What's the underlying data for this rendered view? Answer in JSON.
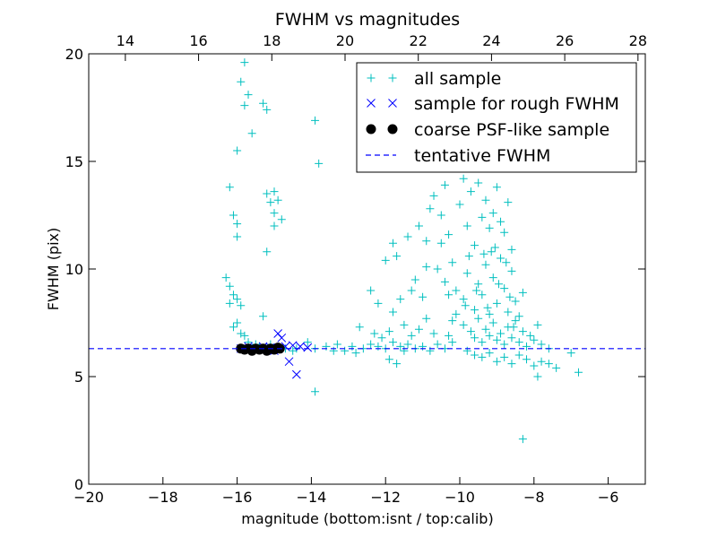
{
  "chart_data": {
    "type": "scatter",
    "title": "FWHM vs magnitudes",
    "xlabel": "magnitude (bottom:isnt / top:calib)",
    "ylabel": "FWHM (pix)",
    "xlim": [
      -20,
      -5
    ],
    "ylim": [
      0,
      20
    ],
    "xticks": [
      -20,
      -18,
      -16,
      -14,
      -12,
      -10,
      -8,
      -6
    ],
    "yticks": [
      0,
      5,
      10,
      15,
      20
    ],
    "top_axis": {
      "xlim": [
        13.0,
        28.2
      ],
      "ticks": [
        14,
        16,
        18,
        20,
        22,
        24,
        26,
        28
      ]
    },
    "legend_position": "top-right",
    "series": [
      {
        "name": "all sample",
        "marker": "plus",
        "color": "#00bfbf",
        "points": [
          [
            -15.8,
            19.6
          ],
          [
            -15.9,
            18.7
          ],
          [
            -15.7,
            18.1
          ],
          [
            -15.8,
            17.6
          ],
          [
            -15.3,
            17.7
          ],
          [
            -15.2,
            17.4
          ],
          [
            -13.9,
            16.9
          ],
          [
            -15.6,
            16.3
          ],
          [
            -16.0,
            15.5
          ],
          [
            -13.8,
            14.9
          ],
          [
            -16.2,
            13.8
          ],
          [
            -15.0,
            13.6
          ],
          [
            -15.2,
            13.5
          ],
          [
            -15.1,
            13.1
          ],
          [
            -14.9,
            13.2
          ],
          [
            -15.0,
            12.6
          ],
          [
            -16.1,
            12.5
          ],
          [
            -16.0,
            12.1
          ],
          [
            -14.8,
            12.3
          ],
          [
            -15.0,
            12.0
          ],
          [
            -16.0,
            11.5
          ],
          [
            -15.2,
            10.8
          ],
          [
            -16.3,
            9.6
          ],
          [
            -16.2,
            9.2
          ],
          [
            -16.1,
            8.8
          ],
          [
            -16.2,
            8.4
          ],
          [
            -16.0,
            8.6
          ],
          [
            -15.9,
            8.3
          ],
          [
            -16.0,
            7.5
          ],
          [
            -16.1,
            7.3
          ],
          [
            -15.9,
            7.0
          ],
          [
            -15.3,
            7.8
          ],
          [
            -15.8,
            6.9
          ],
          [
            -15.7,
            6.6
          ],
          [
            -15.5,
            6.5
          ],
          [
            -15.4,
            6.4
          ],
          [
            -15.1,
            6.5
          ],
          [
            -14.7,
            6.3
          ],
          [
            -14.4,
            6.3
          ],
          [
            -14.1,
            6.6
          ],
          [
            -13.9,
            6.3
          ],
          [
            -13.6,
            6.4
          ],
          [
            -13.3,
            6.5
          ],
          [
            -13.1,
            6.2
          ],
          [
            -12.9,
            6.4
          ],
          [
            -12.6,
            6.3
          ],
          [
            -12.4,
            6.5
          ],
          [
            -12.2,
            6.4
          ],
          [
            -12.0,
            6.3
          ],
          [
            -11.8,
            6.6
          ],
          [
            -11.6,
            6.4
          ],
          [
            -11.4,
            6.5
          ],
          [
            -11.2,
            6.3
          ],
          [
            -11.0,
            6.4
          ],
          [
            -10.8,
            6.2
          ],
          [
            -10.6,
            6.5
          ],
          [
            -10.4,
            6.3
          ],
          [
            -10.2,
            6.6
          ],
          [
            -14.5,
            6.2
          ],
          [
            -13.4,
            6.2
          ],
          [
            -12.8,
            6.1
          ],
          [
            -11.5,
            6.2
          ],
          [
            -11.9,
            5.8
          ],
          [
            -11.7,
            5.6
          ],
          [
            -13.9,
            4.3
          ],
          [
            -12.7,
            7.3
          ],
          [
            -12.3,
            7.0
          ],
          [
            -12.1,
            6.8
          ],
          [
            -11.9,
            7.1
          ],
          [
            -11.5,
            7.4
          ],
          [
            -11.3,
            6.9
          ],
          [
            -11.1,
            7.2
          ],
          [
            -10.9,
            7.7
          ],
          [
            -10.7,
            7.0
          ],
          [
            -12.4,
            9.0
          ],
          [
            -12.2,
            8.4
          ],
          [
            -11.8,
            8.0
          ],
          [
            -11.6,
            8.6
          ],
          [
            -11.3,
            9.0
          ],
          [
            -11.0,
            8.7
          ],
          [
            -12.0,
            10.4
          ],
          [
            -11.8,
            11.2
          ],
          [
            -11.7,
            10.6
          ],
          [
            -11.4,
            11.5
          ],
          [
            -11.1,
            12.0
          ],
          [
            -10.9,
            11.3
          ],
          [
            -10.8,
            12.8
          ],
          [
            -10.7,
            13.4
          ],
          [
            -10.5,
            12.5
          ],
          [
            -10.4,
            13.9
          ],
          [
            -10.3,
            11.6
          ],
          [
            -10.2,
            10.3
          ],
          [
            -10.0,
            13.0
          ],
          [
            -9.9,
            14.2
          ],
          [
            -9.8,
            12.0
          ],
          [
            -9.7,
            13.6
          ],
          [
            -9.6,
            11.1
          ],
          [
            -9.5,
            14.0
          ],
          [
            -9.4,
            12.4
          ],
          [
            -9.3,
            13.2
          ],
          [
            -9.2,
            11.9
          ],
          [
            -9.1,
            12.6
          ],
          [
            -9.0,
            13.8
          ],
          [
            -8.9,
            12.2
          ],
          [
            -8.8,
            11.7
          ],
          [
            -8.7,
            13.1
          ],
          [
            -8.6,
            10.9
          ],
          [
            -10.6,
            10.0
          ],
          [
            -10.4,
            9.4
          ],
          [
            -10.1,
            9.0
          ],
          [
            -9.9,
            8.6
          ],
          [
            -9.8,
            9.8
          ],
          [
            -9.6,
            8.1
          ],
          [
            -9.5,
            9.3
          ],
          [
            -9.4,
            8.8
          ],
          [
            -9.3,
            10.2
          ],
          [
            -9.2,
            7.9
          ],
          [
            -9.1,
            9.6
          ],
          [
            -9.0,
            8.4
          ],
          [
            -8.9,
            10.5
          ],
          [
            -8.8,
            9.1
          ],
          [
            -8.7,
            8.0
          ],
          [
            -8.6,
            9.9
          ],
          [
            -8.5,
            8.5
          ],
          [
            -8.4,
            7.8
          ],
          [
            -8.3,
            8.9
          ],
          [
            -10.2,
            7.6
          ],
          [
            -9.9,
            7.4
          ],
          [
            -9.7,
            7.1
          ],
          [
            -9.5,
            7.7
          ],
          [
            -9.3,
            7.2
          ],
          [
            -9.1,
            7.5
          ],
          [
            -8.9,
            7.0
          ],
          [
            -8.7,
            7.3
          ],
          [
            -8.5,
            7.6
          ],
          [
            -8.3,
            7.1
          ],
          [
            -8.1,
            6.9
          ],
          [
            -7.9,
            7.4
          ],
          [
            -9.6,
            6.8
          ],
          [
            -9.4,
            6.6
          ],
          [
            -9.2,
            6.9
          ],
          [
            -9.0,
            6.7
          ],
          [
            -8.8,
            6.5
          ],
          [
            -8.6,
            6.8
          ],
          [
            -8.4,
            6.6
          ],
          [
            -8.2,
            6.4
          ],
          [
            -8.0,
            6.7
          ],
          [
            -7.8,
            6.5
          ],
          [
            -7.6,
            6.3
          ],
          [
            -9.8,
            6.2
          ],
          [
            -9.6,
            6.0
          ],
          [
            -9.4,
            5.9
          ],
          [
            -9.2,
            6.1
          ],
          [
            -9.0,
            5.7
          ],
          [
            -8.8,
            5.9
          ],
          [
            -8.6,
            5.6
          ],
          [
            -8.4,
            6.0
          ],
          [
            -8.2,
            5.8
          ],
          [
            -8.0,
            5.5
          ],
          [
            -7.8,
            5.7
          ],
          [
            -7.6,
            5.6
          ],
          [
            -7.9,
            5.0
          ],
          [
            -7.4,
            5.4
          ],
          [
            -7.0,
            6.1
          ],
          [
            -6.8,
            5.2
          ],
          [
            -8.3,
            2.1
          ],
          [
            -10.3,
            6.9
          ],
          [
            -10.1,
            7.9
          ],
          [
            -9.85,
            8.3
          ],
          [
            -9.55,
            9.0
          ],
          [
            -9.25,
            8.2
          ],
          [
            -8.95,
            9.3
          ],
          [
            -8.65,
            8.7
          ],
          [
            -9.05,
            11.0
          ],
          [
            -9.35,
            10.7
          ],
          [
            -8.75,
            10.3
          ],
          [
            -9.15,
            10.8
          ],
          [
            -8.55,
            7.3
          ],
          [
            -9.75,
            10.6
          ],
          [
            -10.5,
            11.2
          ],
          [
            -10.9,
            10.1
          ],
          [
            -11.2,
            9.5
          ],
          [
            -10.3,
            8.8
          ]
        ]
      },
      {
        "name": "sample for rough FWHM",
        "marker": "x",
        "color": "#0000ff",
        "points": [
          [
            -15.9,
            6.3
          ],
          [
            -15.7,
            6.4
          ],
          [
            -15.5,
            6.3
          ],
          [
            -15.3,
            6.4
          ],
          [
            -15.1,
            6.35
          ],
          [
            -14.9,
            6.3
          ],
          [
            -14.7,
            6.4
          ],
          [
            -14.5,
            6.45
          ],
          [
            -14.3,
            6.4
          ],
          [
            -14.1,
            6.35
          ],
          [
            -14.9,
            7.0
          ],
          [
            -14.8,
            6.8
          ],
          [
            -14.6,
            5.7
          ],
          [
            -14.4,
            5.1
          ],
          [
            -15.0,
            6.2
          ]
        ]
      },
      {
        "name": "coarse PSF-like sample",
        "marker": "dot",
        "color": "#000000",
        "points": [
          [
            -15.9,
            6.3
          ],
          [
            -15.8,
            6.25
          ],
          [
            -15.7,
            6.3
          ],
          [
            -15.6,
            6.2
          ],
          [
            -15.5,
            6.3
          ],
          [
            -15.4,
            6.25
          ],
          [
            -15.3,
            6.3
          ],
          [
            -15.2,
            6.2
          ],
          [
            -15.1,
            6.3
          ],
          [
            -15.0,
            6.25
          ],
          [
            -14.9,
            6.35
          ],
          [
            -14.85,
            6.3
          ]
        ]
      },
      {
        "name": "tentative FWHM",
        "marker": "dashed-line",
        "color": "#0000ff",
        "y": 6.3
      }
    ]
  }
}
